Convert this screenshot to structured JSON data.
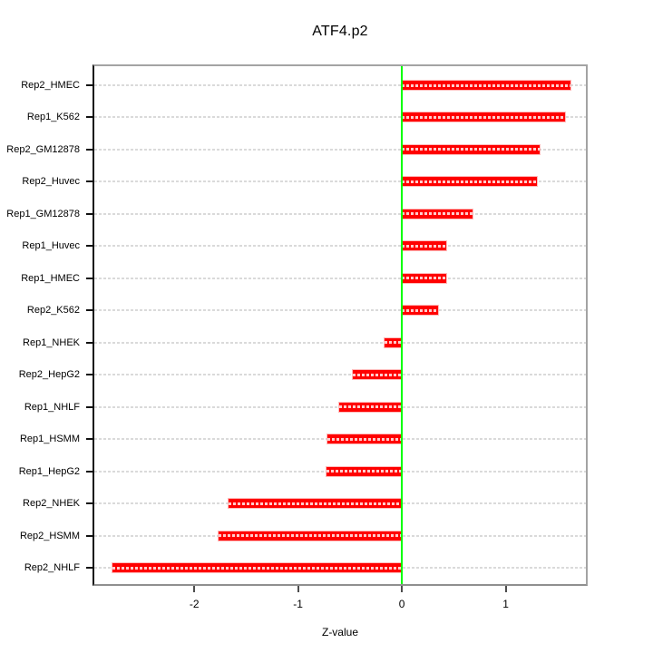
{
  "title": "ATF4.p2",
  "chart_data": {
    "type": "bar",
    "orientation": "horizontal",
    "title": "ATF4.p2",
    "xlabel": "Z-value",
    "ylabel": "",
    "categories": [
      "Rep2_HMEC",
      "Rep1_K562",
      "Rep2_GM12878",
      "Rep2_Huvec",
      "Rep1_GM12878",
      "Rep1_Huvec",
      "Rep1_HMEC",
      "Rep2_K562",
      "Rep1_NHEK",
      "Rep2_HepG2",
      "Rep1_NHLF",
      "Rep1_HSMM",
      "Rep1_HepG2",
      "Rep2_NHEK",
      "Rep2_HSMM",
      "Rep2_NHLF"
    ],
    "values": [
      1.62,
      1.57,
      1.33,
      1.3,
      0.68,
      0.43,
      0.43,
      0.35,
      -0.17,
      -0.47,
      -0.6,
      -0.72,
      -0.73,
      -1.67,
      -1.77,
      -2.79
    ],
    "xlim": [
      -2.98,
      1.79
    ],
    "x_ticks": [
      -2,
      -1,
      0,
      1
    ],
    "grid": true,
    "legend": null,
    "colors": {
      "bar": "#ff0000",
      "bar_dash": "#ffffff",
      "zero_line": "#00ff00",
      "gridline": "#dadada",
      "box_border": "#a3a3a3",
      "axis": "#000000",
      "text": "#000000",
      "background": "#ffffff"
    }
  }
}
